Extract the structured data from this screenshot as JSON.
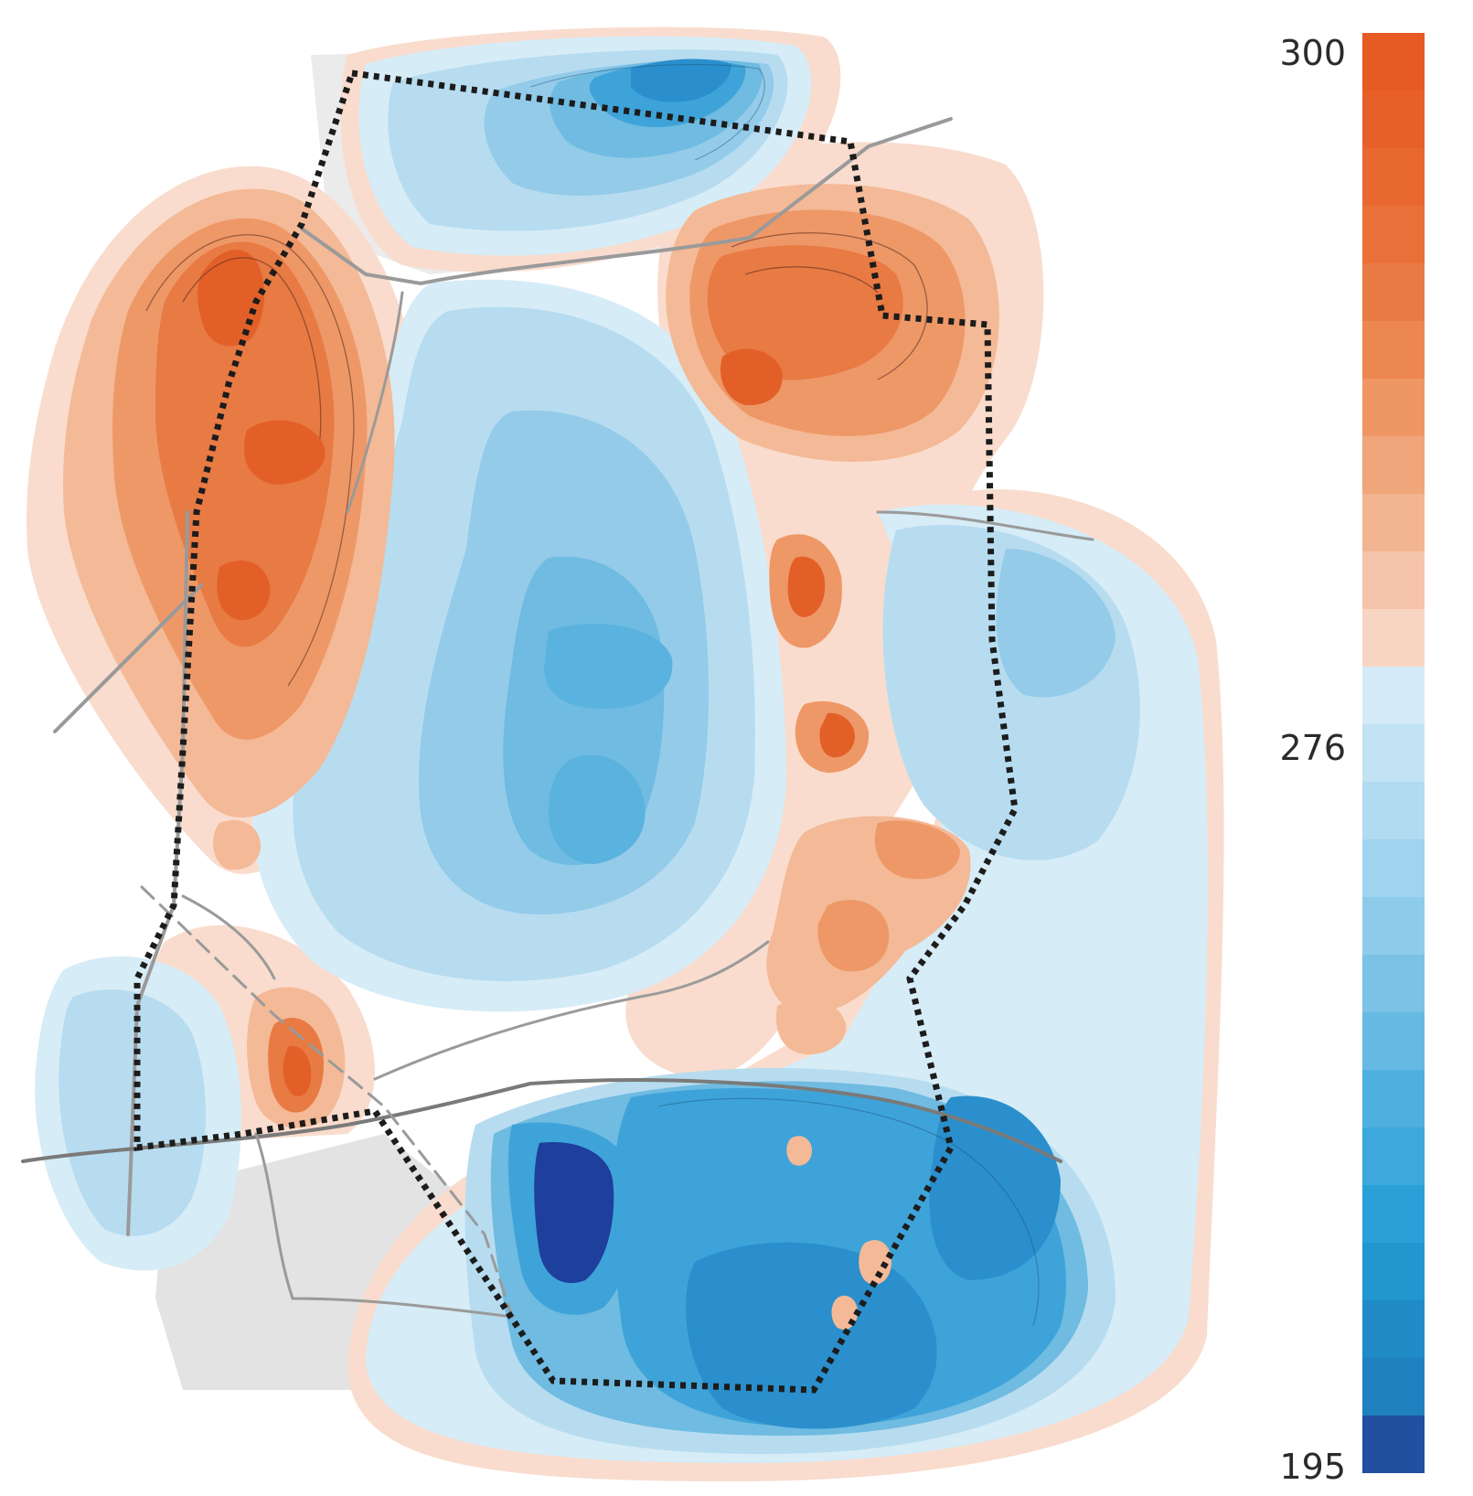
{
  "legend": {
    "max_label": "300",
    "mid_label": "276",
    "min_label": "195",
    "colors_top_to_bottom": [
      "#e65a24",
      "#e7602a",
      "#e86830",
      "#e97038",
      "#ea7a44",
      "#ec8752",
      "#ee9664",
      "#f0a57a",
      "#f3b492",
      "#f5c4aa",
      "#f8d5c3",
      "#d4ebf7",
      "#c2e3f4",
      "#b1dbf1",
      "#a0d3ee",
      "#8ecbea",
      "#7cc2e6",
      "#66b9e2",
      "#4fb0df",
      "#3ca8dc",
      "#2b9fd8",
      "#2196cf",
      "#208bc7",
      "#1f81bf",
      "#224f9f"
    ]
  },
  "colors": {
    "warm_outer": "#f9dccd",
    "warm_1": "#f4b996",
    "warm_2": "#ee9868",
    "warm_3": "#e87a44",
    "warm_4": "#e26028",
    "cool_outer": "#d6ecf7",
    "cool_1": "#b7dcf0",
    "cool_2": "#93cbe9",
    "cool_3": "#6fbbe1",
    "cool_4": "#3ea3d8",
    "cool_5": "#2a8fcc",
    "cool_deep": "#1e3f9c",
    "road": "#9a9a9a",
    "base": "#d9d9d9",
    "boundary": "#1c1c1c"
  }
}
